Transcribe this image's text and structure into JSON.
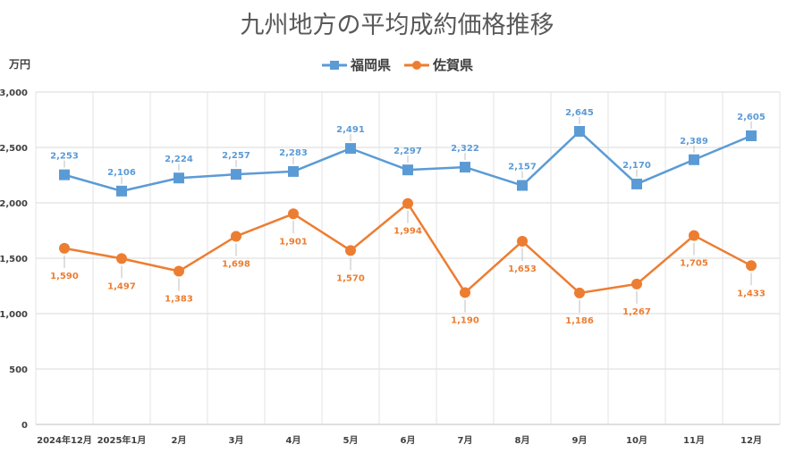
{
  "chart_data": {
    "type": "line",
    "title": "九州地方の平均成約価格推移",
    "ylabel": "万円",
    "xlabel": "",
    "ylim": [
      0,
      3000
    ],
    "yticks": [
      0,
      500,
      1000,
      1500,
      2000,
      2500,
      3000
    ],
    "ytick_labels": [
      "0",
      "500",
      "1,000",
      "1,500",
      "2,000",
      "2,500",
      "3,000"
    ],
    "grid": true,
    "legend_position": "top-center",
    "categories": [
      "2024年12月",
      "2025年1月",
      "2月",
      "3月",
      "4月",
      "5月",
      "6月",
      "7月",
      "8月",
      "9月",
      "10月",
      "11月",
      "12月"
    ],
    "series": [
      {
        "name": "福岡県",
        "color": "#5B9BD5",
        "marker": "square",
        "label_position": "above",
        "values": [
          2253,
          2106,
          2224,
          2257,
          2283,
          2491,
          2297,
          2322,
          2157,
          2645,
          2170,
          2389,
          2605
        ],
        "labels": [
          "2,253",
          "2,106",
          "2,224",
          "2,257",
          "2,283",
          "2,491",
          "2,297",
          "2,322",
          "2,157",
          "2,645",
          "2,170",
          "2,389",
          "2,605"
        ]
      },
      {
        "name": "佐賀県",
        "color": "#ED7D31",
        "marker": "circle",
        "label_position": "below",
        "values": [
          1590,
          1497,
          1383,
          1698,
          1901,
          1570,
          1994,
          1190,
          1653,
          1186,
          1267,
          1705,
          1433
        ],
        "labels": [
          "1,590",
          "1,497",
          "1,383",
          "1,698",
          "1,901",
          "1,570",
          "1,994",
          "1,190",
          "1,653",
          "1,186",
          "1,267",
          "1,705",
          "1,433"
        ]
      }
    ]
  }
}
